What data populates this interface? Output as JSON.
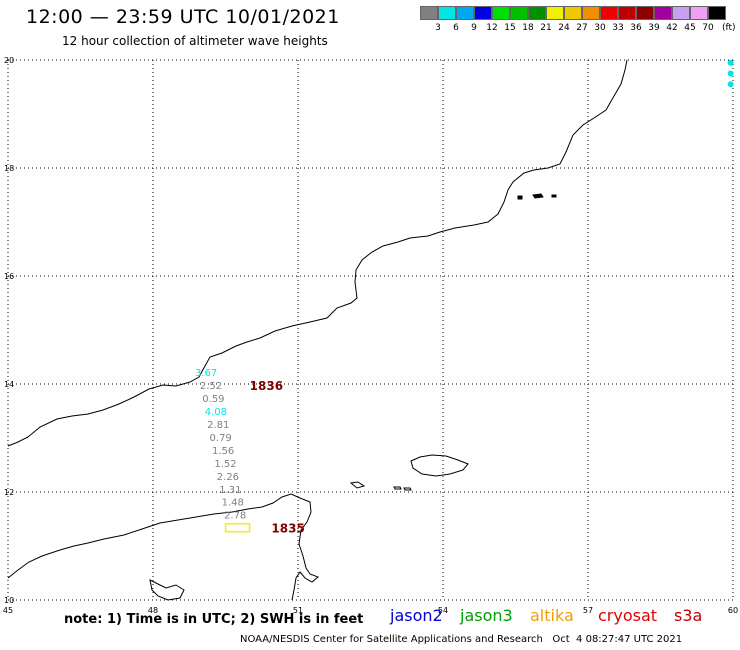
{
  "title": "12:00 — 23:59 UTC 10/01/2021",
  "subtitle": "12 hour collection of altimeter wave heights",
  "colorbar": {
    "unit": "(ft)",
    "colors": [
      "#808080",
      "#00e5e5",
      "#00a8f0",
      "#0000e0",
      "#00e000",
      "#00c000",
      "#009000",
      "#f0f000",
      "#f0c800",
      "#f09000",
      "#f00000",
      "#c00000",
      "#900000",
      "#a000a0",
      "#c8a0f0",
      "#f0a0f0",
      "#000000"
    ],
    "ticks": [
      "3",
      "6",
      "9",
      "12",
      "15",
      "18",
      "21",
      "24",
      "27",
      "30",
      "33",
      "36",
      "39",
      "42",
      "45",
      "70"
    ]
  },
  "map": {
    "lon_range": [
      45,
      60
    ],
    "lat_range": [
      10,
      20
    ],
    "lon_ticks": [
      "45",
      "48",
      "51",
      "54",
      "57",
      "60"
    ],
    "lat_ticks": [
      "20",
      "18",
      "16",
      "14",
      "12",
      "10"
    ],
    "gridlines": "dotted",
    "tracks": [
      {
        "id": "1836",
        "label": "1836",
        "label_color": "#800000",
        "points": [
          {
            "lon": 49.1,
            "lat": 14.22,
            "value": "3.67",
            "color": "#00e5e5"
          },
          {
            "lon": 49.2,
            "lat": 13.98,
            "value": "2.52",
            "color": "#808080"
          },
          {
            "lon": 49.25,
            "lat": 13.74,
            "value": "0.59",
            "color": "#808080"
          },
          {
            "lon": 49.3,
            "lat": 13.5,
            "value": "4.08",
            "color": "#00e5e5"
          },
          {
            "lon": 49.35,
            "lat": 13.26,
            "value": "2.81",
            "color": "#808080"
          },
          {
            "lon": 49.4,
            "lat": 13.02,
            "value": "0.79",
            "color": "#808080"
          },
          {
            "lon": 49.45,
            "lat": 12.78,
            "value": "1.56",
            "color": "#808080"
          },
          {
            "lon": 49.5,
            "lat": 12.54,
            "value": "1.52",
            "color": "#808080"
          },
          {
            "lon": 49.55,
            "lat": 12.3,
            "value": "2.26",
            "color": "#808080"
          },
          {
            "lon": 49.6,
            "lat": 12.06,
            "value": "1.31",
            "color": "#808080"
          },
          {
            "lon": 49.65,
            "lat": 11.82,
            "value": "1.48",
            "color": "#808080"
          },
          {
            "lon": 49.7,
            "lat": 11.58,
            "value": "2.78",
            "color": "#808080"
          }
        ],
        "label_position": {
          "lon": 50.0,
          "lat": 13.98
        }
      },
      {
        "id": "1835",
        "label": "1835",
        "label_color": "#800000",
        "points": [
          {
            "lon": 49.75,
            "lat": 11.34,
            "value": "",
            "color": "#f0f000"
          }
        ],
        "label_position": {
          "lon": 50.45,
          "lat": 11.34
        }
      }
    ],
    "edge_points": [
      {
        "lon": 59.95,
        "lat": 19.95,
        "color": "#00e5e5"
      },
      {
        "lon": 59.95,
        "lat": 19.75,
        "color": "#00e5e5"
      },
      {
        "lon": 59.95,
        "lat": 19.55,
        "color": "#00e5e5"
      }
    ]
  },
  "footer": {
    "note": "note: 1) Time is in UTC; 2) SWH is in feet",
    "legend": [
      {
        "name": "jason2",
        "color": "#0000d0"
      },
      {
        "name": "jason3",
        "color": "#00a000"
      },
      {
        "name": "altika",
        "color": "#f0a000"
      },
      {
        "name": "cryosat",
        "color": "#e00000"
      },
      {
        "name": "s3a",
        "color": "#c00000"
      }
    ],
    "credit": "NOAA/NESDIS Center for Satellite Applications and Research   Oct  4 08:27:47 UTC 2021"
  }
}
